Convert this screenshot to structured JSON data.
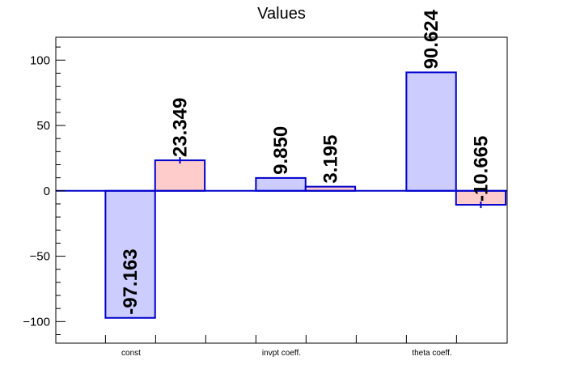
{
  "chart_data": {
    "type": "bar",
    "title": "Values",
    "categories": [
      "const",
      "invpt coeff.",
      "theta coeff."
    ],
    "series": [
      {
        "values": [
          -97.163,
          9.85,
          90.624
        ],
        "errors": [
          0,
          0,
          0
        ],
        "fill": "#ccccff",
        "stroke": "#0000cc"
      },
      {
        "values": [
          23.349,
          3.195,
          -10.665
        ],
        "errors": [
          2.5,
          0,
          2.5
        ],
        "fill": "#ffcccc",
        "stroke": "#0000cc"
      }
    ],
    "data_labels": [
      [
        "-97.163",
        "9.850",
        "90.624"
      ],
      [
        "23.349",
        "3.195",
        "-10.665"
      ]
    ],
    "ylim": [
      -116.5,
      117.5
    ],
    "yticks": [
      -100,
      -50,
      0,
      50,
      100
    ],
    "ytick_labels": [
      "−100",
      "−50",
      "0",
      "50",
      "100"
    ],
    "grid": false,
    "xlabel": "",
    "ylabel": ""
  }
}
